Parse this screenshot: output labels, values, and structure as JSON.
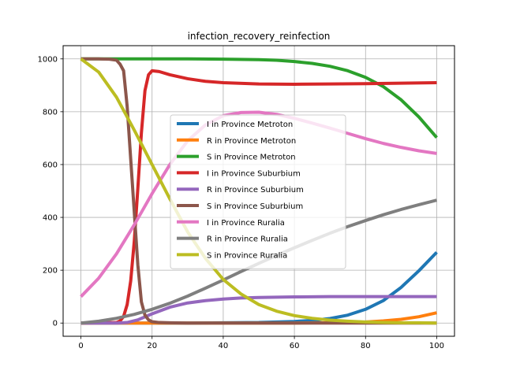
{
  "chart_data": {
    "type": "line",
    "title": "infection_recovery_reinfection",
    "xlabel": "",
    "ylabel": "",
    "xlim": [
      -5,
      105
    ],
    "ylim": [
      -50,
      1050
    ],
    "xticks": [
      0,
      20,
      40,
      60,
      80,
      100
    ],
    "yticks": [
      0,
      200,
      400,
      600,
      800,
      1000
    ],
    "grid": true,
    "legend_position": "center",
    "series": [
      {
        "name": "I in Province Metroton",
        "color": "#1f77b4",
        "x": [
          0,
          10,
          20,
          30,
          40,
          50,
          60,
          65,
          70,
          75,
          80,
          85,
          90,
          95,
          100
        ],
        "y": [
          0,
          0,
          0,
          0,
          1,
          2,
          6,
          10,
          17,
          30,
          52,
          85,
          135,
          198,
          268
        ]
      },
      {
        "name": "R in Province Metroton",
        "color": "#ff7f0e",
        "x": [
          0,
          10,
          20,
          30,
          40,
          50,
          60,
          70,
          75,
          80,
          85,
          90,
          95,
          100
        ],
        "y": [
          0,
          0,
          0,
          0,
          0,
          0,
          0,
          1,
          2,
          4,
          8,
          14,
          24,
          39
        ]
      },
      {
        "name": "S in Province Metroton",
        "color": "#2ca02c",
        "x": [
          0,
          10,
          20,
          30,
          40,
          50,
          55,
          60,
          65,
          70,
          75,
          80,
          85,
          90,
          95,
          100
        ],
        "y": [
          1000,
          1000,
          1000,
          1000,
          999,
          997,
          995,
          990,
          983,
          972,
          955,
          930,
          895,
          845,
          780,
          702
        ]
      },
      {
        "name": "I in Province Suburbium",
        "color": "#d62728",
        "x": [
          0,
          10,
          11,
          12,
          13,
          14,
          15,
          16,
          17,
          18,
          19,
          20,
          22,
          25,
          30,
          35,
          40,
          50,
          60,
          70,
          80,
          90,
          100
        ],
        "y": [
          0,
          2,
          8,
          25,
          70,
          160,
          310,
          510,
          720,
          880,
          940,
          955,
          952,
          940,
          925,
          915,
          910,
          905,
          904,
          905,
          906,
          908,
          910
        ]
      },
      {
        "name": "R in Province Suburbium",
        "color": "#9467bd",
        "x": [
          0,
          10,
          13,
          16,
          20,
          25,
          30,
          35,
          40,
          45,
          50,
          60,
          70,
          80,
          90,
          100
        ],
        "y": [
          0,
          0,
          2,
          12,
          35,
          60,
          76,
          85,
          91,
          95,
          97,
          99,
          100,
          100,
          100,
          100
        ]
      },
      {
        "name": "S in Province Suburbium",
        "color": "#8c564b",
        "x": [
          0,
          5,
          8,
          10,
          11,
          12,
          13,
          14,
          15,
          16,
          17,
          18,
          19,
          20,
          22,
          25,
          30,
          40,
          50,
          60,
          70,
          80,
          90,
          100
        ],
        "y": [
          1000,
          1000,
          999,
          995,
          980,
          955,
          820,
          620,
          420,
          220,
          80,
          30,
          12,
          5,
          2,
          1,
          0,
          0,
          0,
          0,
          0,
          0,
          0,
          0
        ]
      },
      {
        "name": "I in Province Ruralia",
        "color": "#e377c2",
        "x": [
          0,
          5,
          10,
          15,
          20,
          25,
          30,
          35,
          40,
          45,
          50,
          55,
          60,
          65,
          70,
          75,
          80,
          85,
          90,
          95,
          100
        ],
        "y": [
          100,
          170,
          262,
          372,
          490,
          600,
          690,
          750,
          785,
          797,
          798,
          790,
          775,
          757,
          738,
          718,
          698,
          680,
          665,
          652,
          642
        ]
      },
      {
        "name": "R in Province Ruralia",
        "color": "#7f7f7f",
        "x": [
          0,
          5,
          10,
          15,
          20,
          25,
          30,
          35,
          40,
          45,
          50,
          55,
          60,
          65,
          70,
          75,
          80,
          85,
          90,
          95,
          100
        ],
        "y": [
          0,
          7,
          18,
          33,
          52,
          75,
          102,
          132,
          163,
          195,
          226,
          256,
          285,
          313,
          340,
          365,
          388,
          410,
          430,
          448,
          465
        ]
      },
      {
        "name": "S in Province Ruralia",
        "color": "#bcbd22",
        "x": [
          0,
          5,
          10,
          15,
          20,
          25,
          30,
          35,
          40,
          45,
          50,
          55,
          60,
          65,
          70,
          75,
          80,
          85,
          90,
          95,
          100
        ],
        "y": [
          1000,
          950,
          855,
          730,
          600,
          470,
          345,
          245,
          165,
          110,
          70,
          45,
          28,
          18,
          11,
          7,
          4,
          2,
          1,
          1,
          0
        ]
      }
    ]
  }
}
